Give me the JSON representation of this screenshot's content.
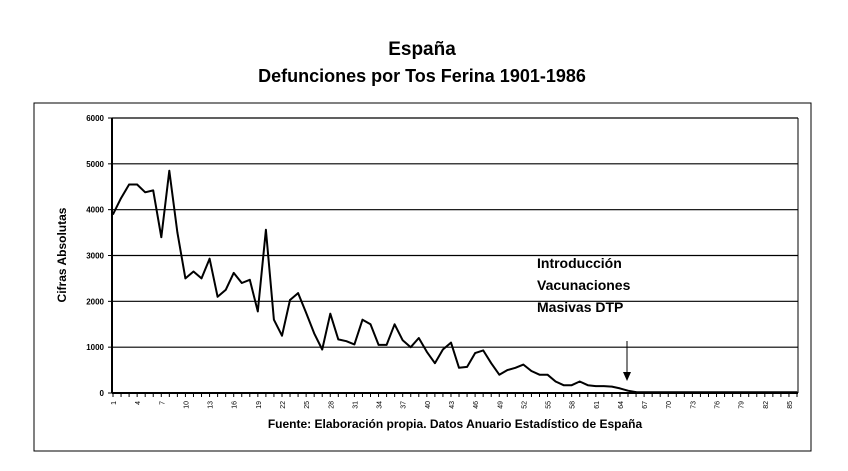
{
  "chart_data": {
    "type": "line",
    "title": "España",
    "subtitle": "Defunciones por Tos Ferina 1901-1986",
    "xlabel": "Fuente: Elaboración propia. Datos Anuario Estadístico de España",
    "ylabel": "Cifras Absolutas",
    "ylim": [
      0,
      6000
    ],
    "yticks": [
      0,
      1000,
      2000,
      3000,
      4000,
      5000,
      6000
    ],
    "grid": true,
    "x": [
      1,
      2,
      3,
      4,
      5,
      6,
      7,
      8,
      9,
      10,
      11,
      12,
      13,
      14,
      15,
      16,
      17,
      18,
      19,
      20,
      21,
      22,
      23,
      24,
      25,
      26,
      27,
      28,
      29,
      30,
      31,
      32,
      33,
      34,
      35,
      36,
      37,
      38,
      39,
      40,
      41,
      42,
      43,
      44,
      45,
      46,
      47,
      48,
      49,
      50,
      51,
      52,
      53,
      54,
      55,
      56,
      57,
      58,
      59,
      60,
      61,
      62,
      63,
      64,
      65,
      66,
      67,
      68,
      69,
      70,
      71,
      72,
      73,
      74,
      75,
      76,
      77,
      78,
      79,
      80,
      81,
      82,
      83,
      84,
      85,
      86
    ],
    "xtick_labels": [
      "1",
      "4",
      "7",
      "10",
      "13",
      "16",
      "19",
      "22",
      "25",
      "28",
      "31",
      "34",
      "37",
      "40",
      "43",
      "46",
      "49",
      "52",
      "55",
      "58",
      "61",
      "64",
      "67",
      "70",
      "73",
      "76",
      "79",
      "82",
      "85"
    ],
    "values": [
      3900,
      4250,
      4550,
      4550,
      4380,
      4420,
      3400,
      4850,
      3500,
      2500,
      2650,
      2500,
      2930,
      2100,
      2250,
      2620,
      2400,
      2470,
      1780,
      3560,
      1600,
      1250,
      2030,
      2180,
      1750,
      1300,
      950,
      1730,
      1170,
      1130,
      1060,
      1600,
      1500,
      1050,
      1050,
      1500,
      1150,
      1000,
      1200,
      900,
      650,
      950,
      1100,
      550,
      570,
      870,
      930,
      650,
      400,
      500,
      550,
      620,
      480,
      400,
      400,
      250,
      170,
      170,
      250,
      170,
      150,
      150,
      140,
      100,
      50,
      20,
      15,
      15,
      15,
      15,
      15,
      15,
      15,
      15,
      15,
      15,
      15,
      15,
      15,
      15,
      15,
      15,
      15,
      15,
      15,
      15
    ],
    "annotation": {
      "lines": [
        "Introducción",
        "Vacunaciones",
        "Masivas DTP"
      ],
      "arrow_x": 65
    },
    "colors": {
      "line": "#000000",
      "grid": "#000000",
      "text": "#000000"
    }
  }
}
